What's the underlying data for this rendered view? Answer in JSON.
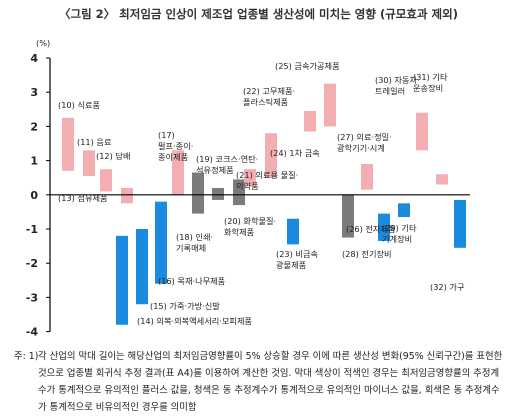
{
  "title": "〈그림 2〉 최저임금 인상이 제조업 업종별 생산성에 미치는 영향 (규모효과 제외)",
  "note": {
    "prefix": "주: 1)",
    "text": "각 산업의 막대 길이는 해당산업의 최저임금영향률이 5% 상승할 경우 이에 따른 생산성 변화(95% 신뢰구간)를 표현한 것으로 업종별 회귀식 추정 결과(표 A4)를 이용하여 계산한 것임. 막대 색상이 적색인 경우는 최저임금영향률의 추정계수가 통계적으로 유의적인 플러스 값을, 청색은 동 추정계수가 통계적으로 유의적인 마이너스 값을, 회색은 동 추정계수가 통계적으로 비유의적인 경우를 의미함"
  },
  "colors": {
    "positive": "#f2aeb0",
    "negative": "#1b8be0",
    "insignificant": "#7b7b7b",
    "axis": "#000000"
  },
  "chart_data": {
    "type": "bar",
    "subtype": "floating-range",
    "ylabel": "(%)",
    "ylim": [
      -4,
      4
    ],
    "yticks": [
      4,
      3,
      2,
      1,
      0,
      -1,
      -2,
      -3,
      -4
    ],
    "grid": false,
    "bars": [
      {
        "label": "(10) 식료품",
        "low": 0.7,
        "high": 2.25,
        "significance": "positive"
      },
      {
        "label": "(11) 음료",
        "low": 0.55,
        "high": 1.3,
        "significance": "positive"
      },
      {
        "label": "(12) 담배",
        "low": 0.1,
        "high": 0.75,
        "significance": "positive"
      },
      {
        "label": "(13) 섬유제품",
        "low": -0.25,
        "high": 0.2,
        "significance": "positive"
      },
      {
        "label": "(14) 의복·의복액세서리·모피제품",
        "low": -3.8,
        "high": -1.2,
        "significance": "negative"
      },
      {
        "label": "(15) 가죽·가방·신발",
        "low": -3.2,
        "high": -1.0,
        "significance": "negative"
      },
      {
        "label": "(16) 목재·나무제품",
        "low": -2.6,
        "high": -0.2,
        "significance": "negative"
      },
      {
        "label": "(17) 펄프·종이·종이제품",
        "low": 0.0,
        "high": 1.3,
        "significance": "positive"
      },
      {
        "label": "(18) 인쇄·기록매체",
        "low": -0.55,
        "high": 0.65,
        "significance": "insignificant"
      },
      {
        "label": "(19) 코크스·연탄·석유정제품",
        "low": -0.15,
        "high": 0.2,
        "significance": "insignificant"
      },
      {
        "label": "(20) 화학물질·화학제품",
        "low": -0.3,
        "high": 0.45,
        "significance": "insignificant"
      },
      {
        "label": "(21) 의료용 물질·의약품",
        "low": 0.25,
        "high": 0.75,
        "significance": "positive"
      },
      {
        "label": "(22) 고무제품·플라스틱제품",
        "low": 0.5,
        "high": 1.8,
        "significance": "positive"
      },
      {
        "label": "(23) 비금속 광물제품",
        "low": -1.45,
        "high": -0.7,
        "significance": "negative"
      },
      {
        "label": "(24) 1차 금속",
        "low": 1.85,
        "high": 2.45,
        "significance": "positive"
      },
      {
        "label": "(25) 금속가공제품",
        "low": 2.0,
        "high": 3.25,
        "significance": "positive"
      },
      {
        "label": "(26) 전자제품",
        "low": -1.25,
        "high": 0.0,
        "significance": "insignificant"
      },
      {
        "label": "(27) 의료·정밀·광학기기·시계",
        "low": 0.15,
        "high": 0.9,
        "significance": "positive"
      },
      {
        "label": "(28) 전기장비",
        "low": -1.35,
        "high": -0.55,
        "significance": "negative"
      },
      {
        "label": "(29) 기타 기계장비",
        "low": -0.65,
        "high": -0.25,
        "significance": "negative"
      },
      {
        "label": "(30) 자동차·트레일러",
        "low": 1.3,
        "high": 2.4,
        "significance": "positive"
      },
      {
        "label": "(31) 기타 운송장비",
        "low": 0.3,
        "high": 0.6,
        "significance": "positive"
      },
      {
        "label": "(32) 가구",
        "low": -1.55,
        "high": -0.15,
        "significance": "negative"
      }
    ]
  }
}
